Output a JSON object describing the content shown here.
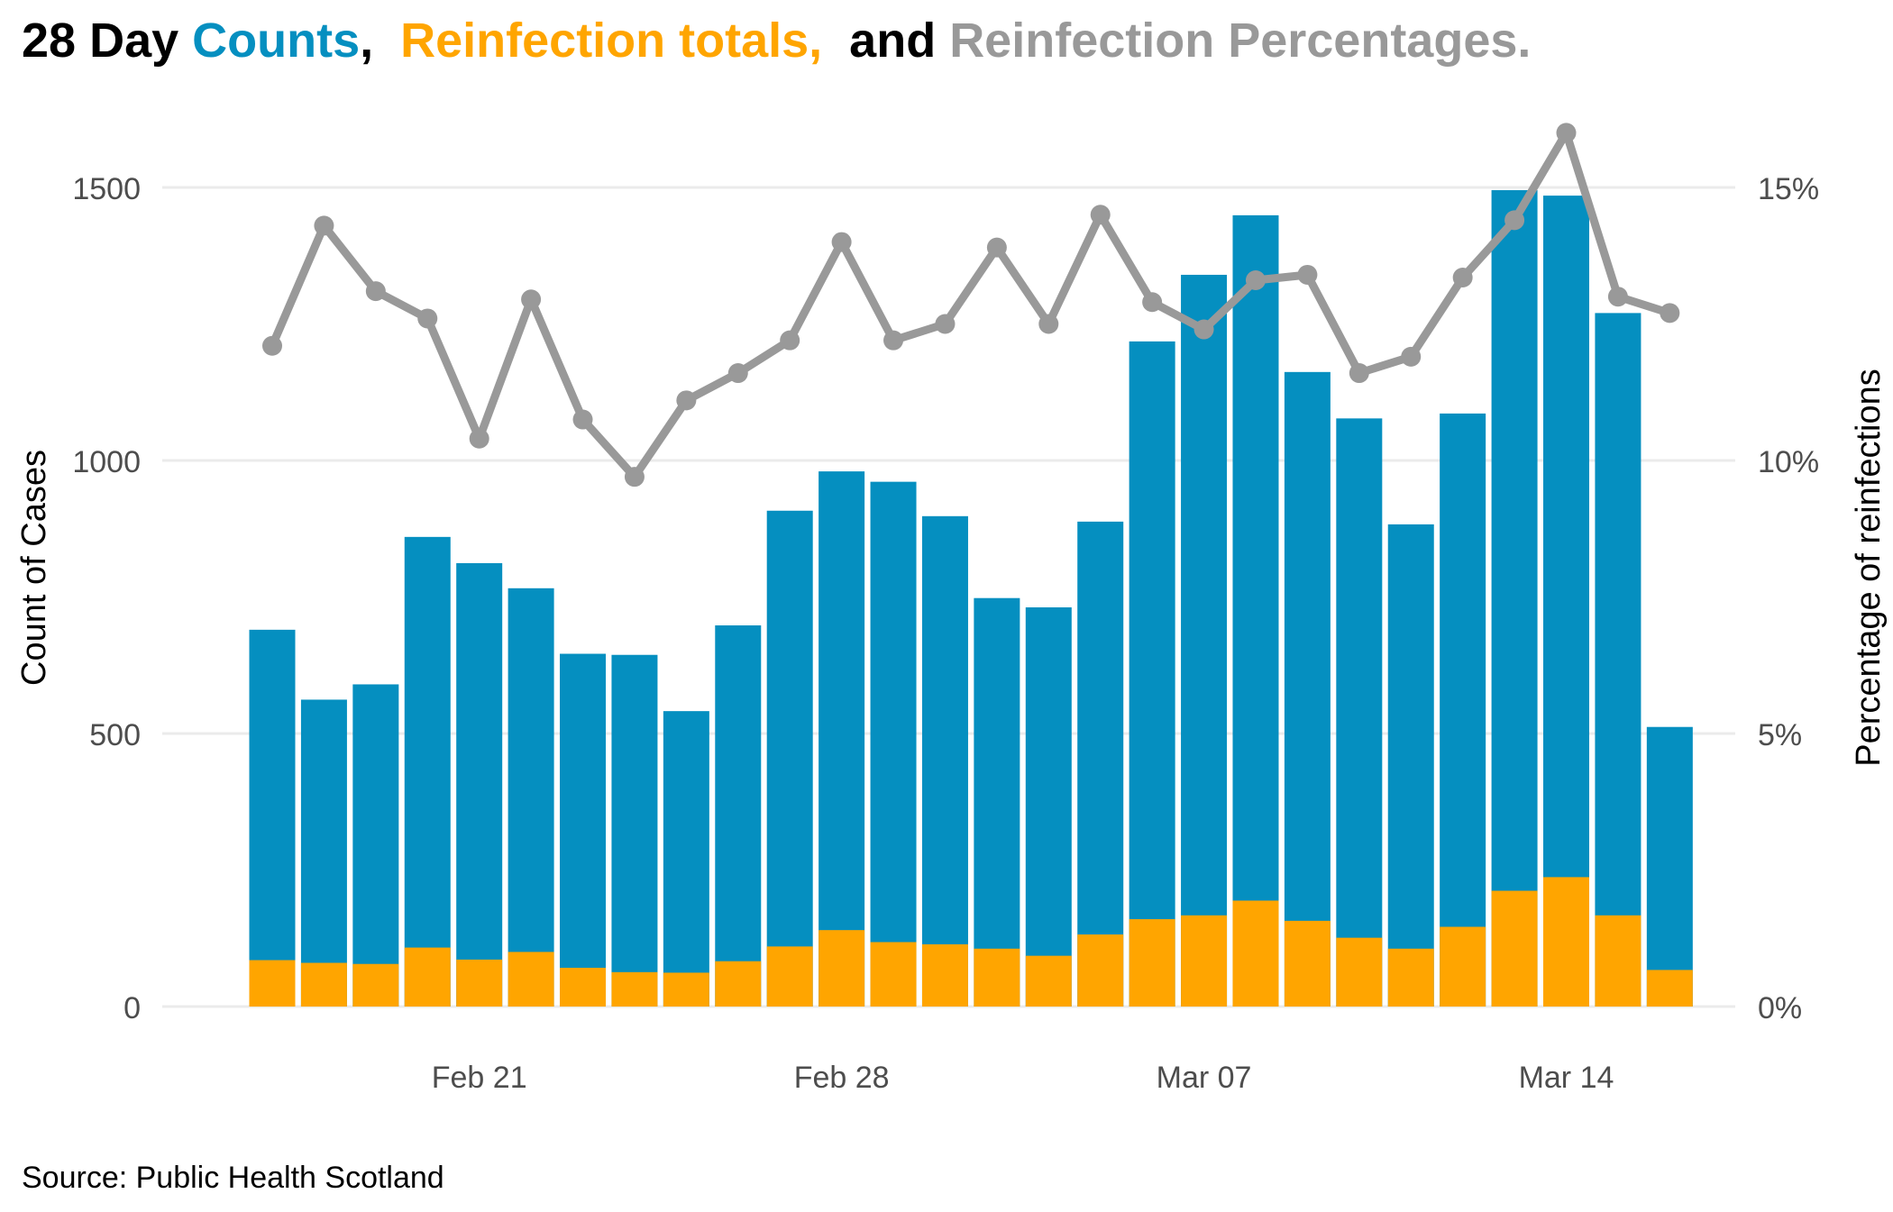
{
  "title": {
    "part1": "28 Day ",
    "part2": "Counts",
    "part3": ",  ",
    "part4": "Reinfection totals,",
    "part5": "  and ",
    "part6": "Reinfection Percentages."
  },
  "colors": {
    "counts": "#058FC0",
    "reinfections": "#FFA500",
    "percentage": "#999999",
    "title_black": "#000000",
    "grid": "#EBEBEB",
    "tick_text": "#4D4D4D"
  },
  "source": "Source: Public Health Scotland",
  "chart_data": {
    "type": "bar",
    "dates": [
      "2022-02-17",
      "2022-02-18",
      "2022-02-19",
      "2022-02-20",
      "2022-02-21",
      "2022-02-22",
      "2022-02-23",
      "2022-02-24",
      "2022-02-25",
      "2022-02-26",
      "2022-02-27",
      "2022-02-28",
      "2022-03-01",
      "2022-03-02",
      "2022-03-03",
      "2022-03-04",
      "2022-03-05",
      "2022-03-06",
      "2022-03-07",
      "2022-03-08",
      "2022-03-09",
      "2022-03-10",
      "2022-03-11",
      "2022-03-12",
      "2022-03-13",
      "2022-03-14",
      "2022-03-15",
      "2022-03-16"
    ],
    "series": [
      {
        "name": "Counts",
        "kind": "bar",
        "values": [
          690,
          562,
          590,
          860,
          812,
          766,
          646,
          644,
          541,
          698,
          908,
          980,
          961,
          898,
          748,
          731,
          888,
          1218,
          1340,
          1449,
          1162,
          1077,
          883,
          1086,
          1495,
          1485,
          1270,
          512
        ]
      },
      {
        "name": "Reinfection totals",
        "kind": "bar",
        "values": [
          85,
          80,
          78,
          108,
          86,
          100,
          71,
          63,
          62,
          83,
          110,
          140,
          118,
          114,
          106,
          93,
          132,
          160,
          167,
          194,
          157,
          126,
          106,
          146,
          212,
          237,
          167,
          67
        ]
      },
      {
        "name": "Reinfection Percentages",
        "kind": "line",
        "axis": "right",
        "values": [
          12.1,
          14.3,
          13.1,
          12.6,
          10.4,
          12.95,
          10.75,
          9.7,
          11.1,
          11.6,
          12.2,
          14.0,
          12.2,
          12.5,
          13.9,
          12.5,
          14.5,
          12.9,
          12.4,
          13.3,
          13.4,
          11.6,
          11.9,
          13.35,
          14.4,
          16.0,
          13.0,
          12.7
        ]
      }
    ],
    "xticks": [
      {
        "date": "2022-02-21",
        "label": "Feb 21"
      },
      {
        "date": "2022-02-28",
        "label": "Feb 28"
      },
      {
        "date": "2022-03-07",
        "label": "Mar 07"
      },
      {
        "date": "2022-03-14",
        "label": "Mar 14"
      }
    ],
    "y_left": {
      "label": "Count of Cases",
      "ticks": [
        "0",
        "500",
        "1000",
        "1500"
      ],
      "lim": [
        0,
        1600
      ]
    },
    "y_right": {
      "label": "Percentage of reinfections",
      "ticks": [
        "0%",
        "5%",
        "10%",
        "15%"
      ],
      "lim": [
        0,
        16
      ]
    },
    "grid": true,
    "legend": "none"
  }
}
